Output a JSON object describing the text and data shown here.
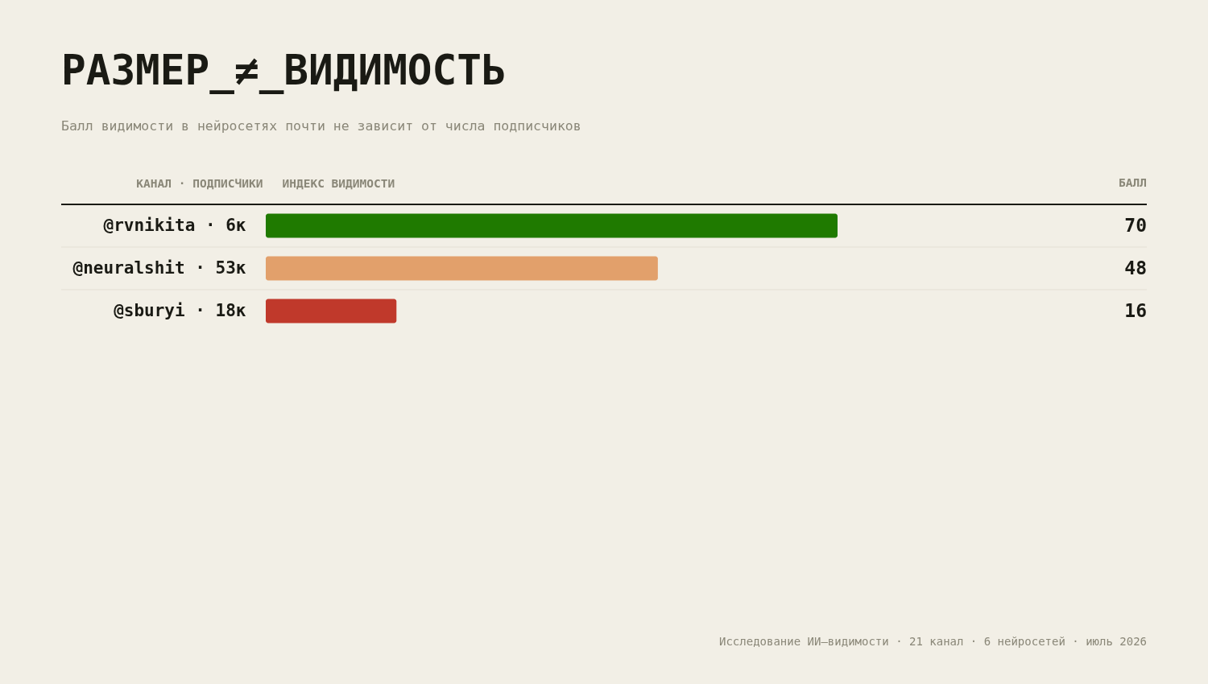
{
  "chart_data": {
    "type": "bar",
    "orientation": "horizontal",
    "title": "РАЗМЕР_≠_ВИДИМОСТЬ",
    "subtitle": "Балл видимости в нейросетях почти не зависит от числа подписчиков",
    "ylabel": "КАНАЛ · ПОДПИСЧИКИ",
    "xlabel": "ИНДЕКС ВИДИМОСТИ",
    "categories": [
      "@rvnikita · 6к",
      "@neuralshit · 53к",
      "@sburyi · 18к"
    ],
    "values": [
      70,
      48,
      16
    ],
    "colors": [
      "#1f7a00",
      "#e2a06b",
      "#c0392b"
    ],
    "data_labels": true,
    "tick_labels": "y",
    "grid": "y",
    "legend": false,
    "annotations": [
      "БАЛЛ",
      "Исследование ИИ–видимости · 21 канал · 6 нейросетей · июль 2026"
    ]
  }
}
